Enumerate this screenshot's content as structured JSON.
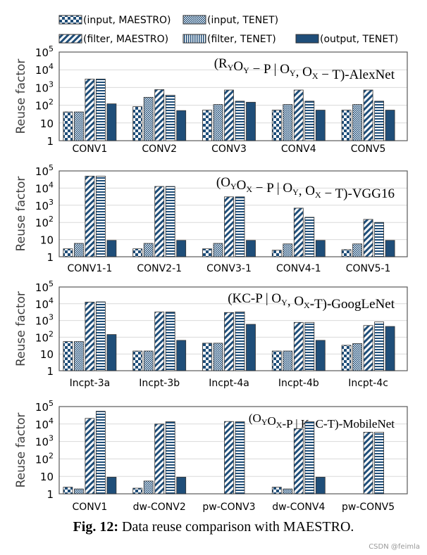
{
  "legend": [
    {
      "key": "input_maestro",
      "label": "(input, MAESTRO)",
      "pattern": "checker"
    },
    {
      "key": "input_tenet",
      "label": "(input, TENET)",
      "pattern": "dots"
    },
    {
      "key": "filter_maestro",
      "label": "(filter, MAESTRO)",
      "pattern": "diagonal"
    },
    {
      "key": "filter_tenet",
      "label": "(filter, TENET)",
      "pattern": "vertical-lines"
    },
    {
      "key": "output_tenet",
      "label": "(output, TENET)",
      "pattern": "solid"
    }
  ],
  "colors": {
    "bar": "#1f4e79",
    "grid": "#d9d9d9",
    "axis": "#595959"
  },
  "caption": {
    "label": "Fig. 12:",
    "text": " Data reuse comparison with MAESTRO."
  },
  "watermark": "CSDN @feimla",
  "chart_data": [
    {
      "type": "bar",
      "scale": "log",
      "ylim": [
        1,
        100000
      ],
      "ylabel": "Reuse factor",
      "yticks": [
        "1",
        "10",
        "10^2",
        "10^3",
        "10^4",
        "10^5"
      ],
      "title": [
        {
          "t": "(R"
        },
        {
          "s": "Y"
        },
        {
          "t": "O"
        },
        {
          "s": "Y"
        },
        {
          "t": " − P | O"
        },
        {
          "s": "Y"
        },
        {
          "t": ", O"
        },
        {
          "s": "X"
        },
        {
          "t": " − T)-AlexNet"
        }
      ],
      "categories": [
        "CONV1",
        "CONV2",
        "CONV3",
        "CONV4",
        "CONV5"
      ],
      "series": [
        {
          "name": "(input, MAESTRO)",
          "values": [
            42,
            83,
            53,
            53,
            53
          ]
        },
        {
          "name": "(input, TENET)",
          "values": [
            42,
            280,
            110,
            110,
            110
          ]
        },
        {
          "name": "(filter, MAESTRO)",
          "values": [
            3000,
            760,
            720,
            720,
            720
          ]
        },
        {
          "name": "(filter, TENET)",
          "values": [
            3000,
            370,
            170,
            170,
            170
          ]
        },
        {
          "name": "(output, TENET)",
          "values": [
            120,
            50,
            148,
            53,
            53
          ]
        }
      ]
    },
    {
      "type": "bar",
      "scale": "log",
      "ylim": [
        1,
        100000
      ],
      "ylabel": "Reuse factor",
      "yticks": [
        "1",
        "10",
        "10^2",
        "10^3",
        "10^4",
        "10^5"
      ],
      "title": [
        {
          "t": "(O"
        },
        {
          "s": "Y"
        },
        {
          "t": "O"
        },
        {
          "s": "X"
        },
        {
          "t": " − P | O"
        },
        {
          "s": "Y"
        },
        {
          "t": ", O"
        },
        {
          "s": "X"
        },
        {
          "t": " − T)-VGG16"
        }
      ],
      "categories": [
        "CONV1-1",
        "CONV2-1",
        "CONV3-1",
        "CONV4-1",
        "CONV5-1"
      ],
      "series": [
        {
          "name": "(input, MAESTRO)",
          "values": [
            2.9,
            2.9,
            2.9,
            2.4,
            2.6
          ]
        },
        {
          "name": "(input, TENET)",
          "values": [
            6,
            6,
            6,
            5.6,
            5.6
          ]
        },
        {
          "name": "(filter, MAESTRO)",
          "values": [
            50000,
            12500,
            3100,
            680,
            150
          ]
        },
        {
          "name": "(filter, TENET)",
          "values": [
            50000,
            12500,
            3100,
            200,
            100
          ]
        },
        {
          "name": "(output, TENET)",
          "values": [
            9,
            9,
            9,
            9,
            9
          ]
        }
      ]
    },
    {
      "type": "bar",
      "scale": "log",
      "ylim": [
        1,
        100000
      ],
      "ylabel": "Reuse factor",
      "yticks": [
        "1",
        "10",
        "10^2",
        "10^3",
        "10^4",
        "10^5"
      ],
      "title": [
        {
          "t": "(KC-P | O"
        },
        {
          "s": "Y"
        },
        {
          "t": ",  O"
        },
        {
          "s": "X"
        },
        {
          "t": "-T)-GoogLeNet"
        }
      ],
      "categories": [
        "Incpt-3a",
        "Incpt-3b",
        "Incpt-4a",
        "Incpt-4b",
        "Incpt-4c"
      ],
      "series": [
        {
          "name": "(input, MAESTRO)",
          "values": [
            55,
            15,
            44,
            15,
            33
          ]
        },
        {
          "name": "(input, TENET)",
          "values": [
            55,
            15,
            44,
            15,
            42
          ]
        },
        {
          "name": "(filter, MAESTRO)",
          "values": [
            12500,
            3200,
            3000,
            770,
            500
          ]
        },
        {
          "name": "(filter, TENET)",
          "values": [
            13000,
            3200,
            3300,
            770,
            820
          ]
        },
        {
          "name": "(output, TENET)",
          "values": [
            145,
            65,
            590,
            65,
            440
          ]
        }
      ]
    },
    {
      "type": "bar",
      "scale": "log",
      "ylim": [
        1,
        100000
      ],
      "ylabel": "Reuse factor",
      "yticks": [
        "1",
        "10",
        "10^2",
        "10^3",
        "10^4",
        "10^5"
      ],
      "title": [
        {
          "t": "(O"
        },
        {
          "s": "Y"
        },
        {
          "t": "O"
        },
        {
          "s": "X"
        },
        {
          "t": "-P | K, C-T)-MobileNet"
        }
      ],
      "categories": [
        "CONV1",
        "dw-CONV2",
        "pw-CONV3",
        "dw-CONV4",
        "pw-CONV5"
      ],
      "series": [
        {
          "name": "(input, MAESTRO)",
          "values": [
            2.4,
            2.1,
            null,
            2.4,
            null
          ]
        },
        {
          "name": "(input, TENET)",
          "values": [
            1.9,
            5.4,
            null,
            1.9,
            null
          ]
        },
        {
          "name": "(filter, MAESTRO)",
          "values": [
            21000,
            10000,
            14000,
            5400,
            3400
          ]
        },
        {
          "name": "(filter, TENET)",
          "values": [
            54000,
            13500,
            13500,
            13500,
            3400
          ]
        },
        {
          "name": "(output, TENET)",
          "values": [
            9,
            9,
            null,
            9,
            null
          ]
        }
      ]
    }
  ]
}
